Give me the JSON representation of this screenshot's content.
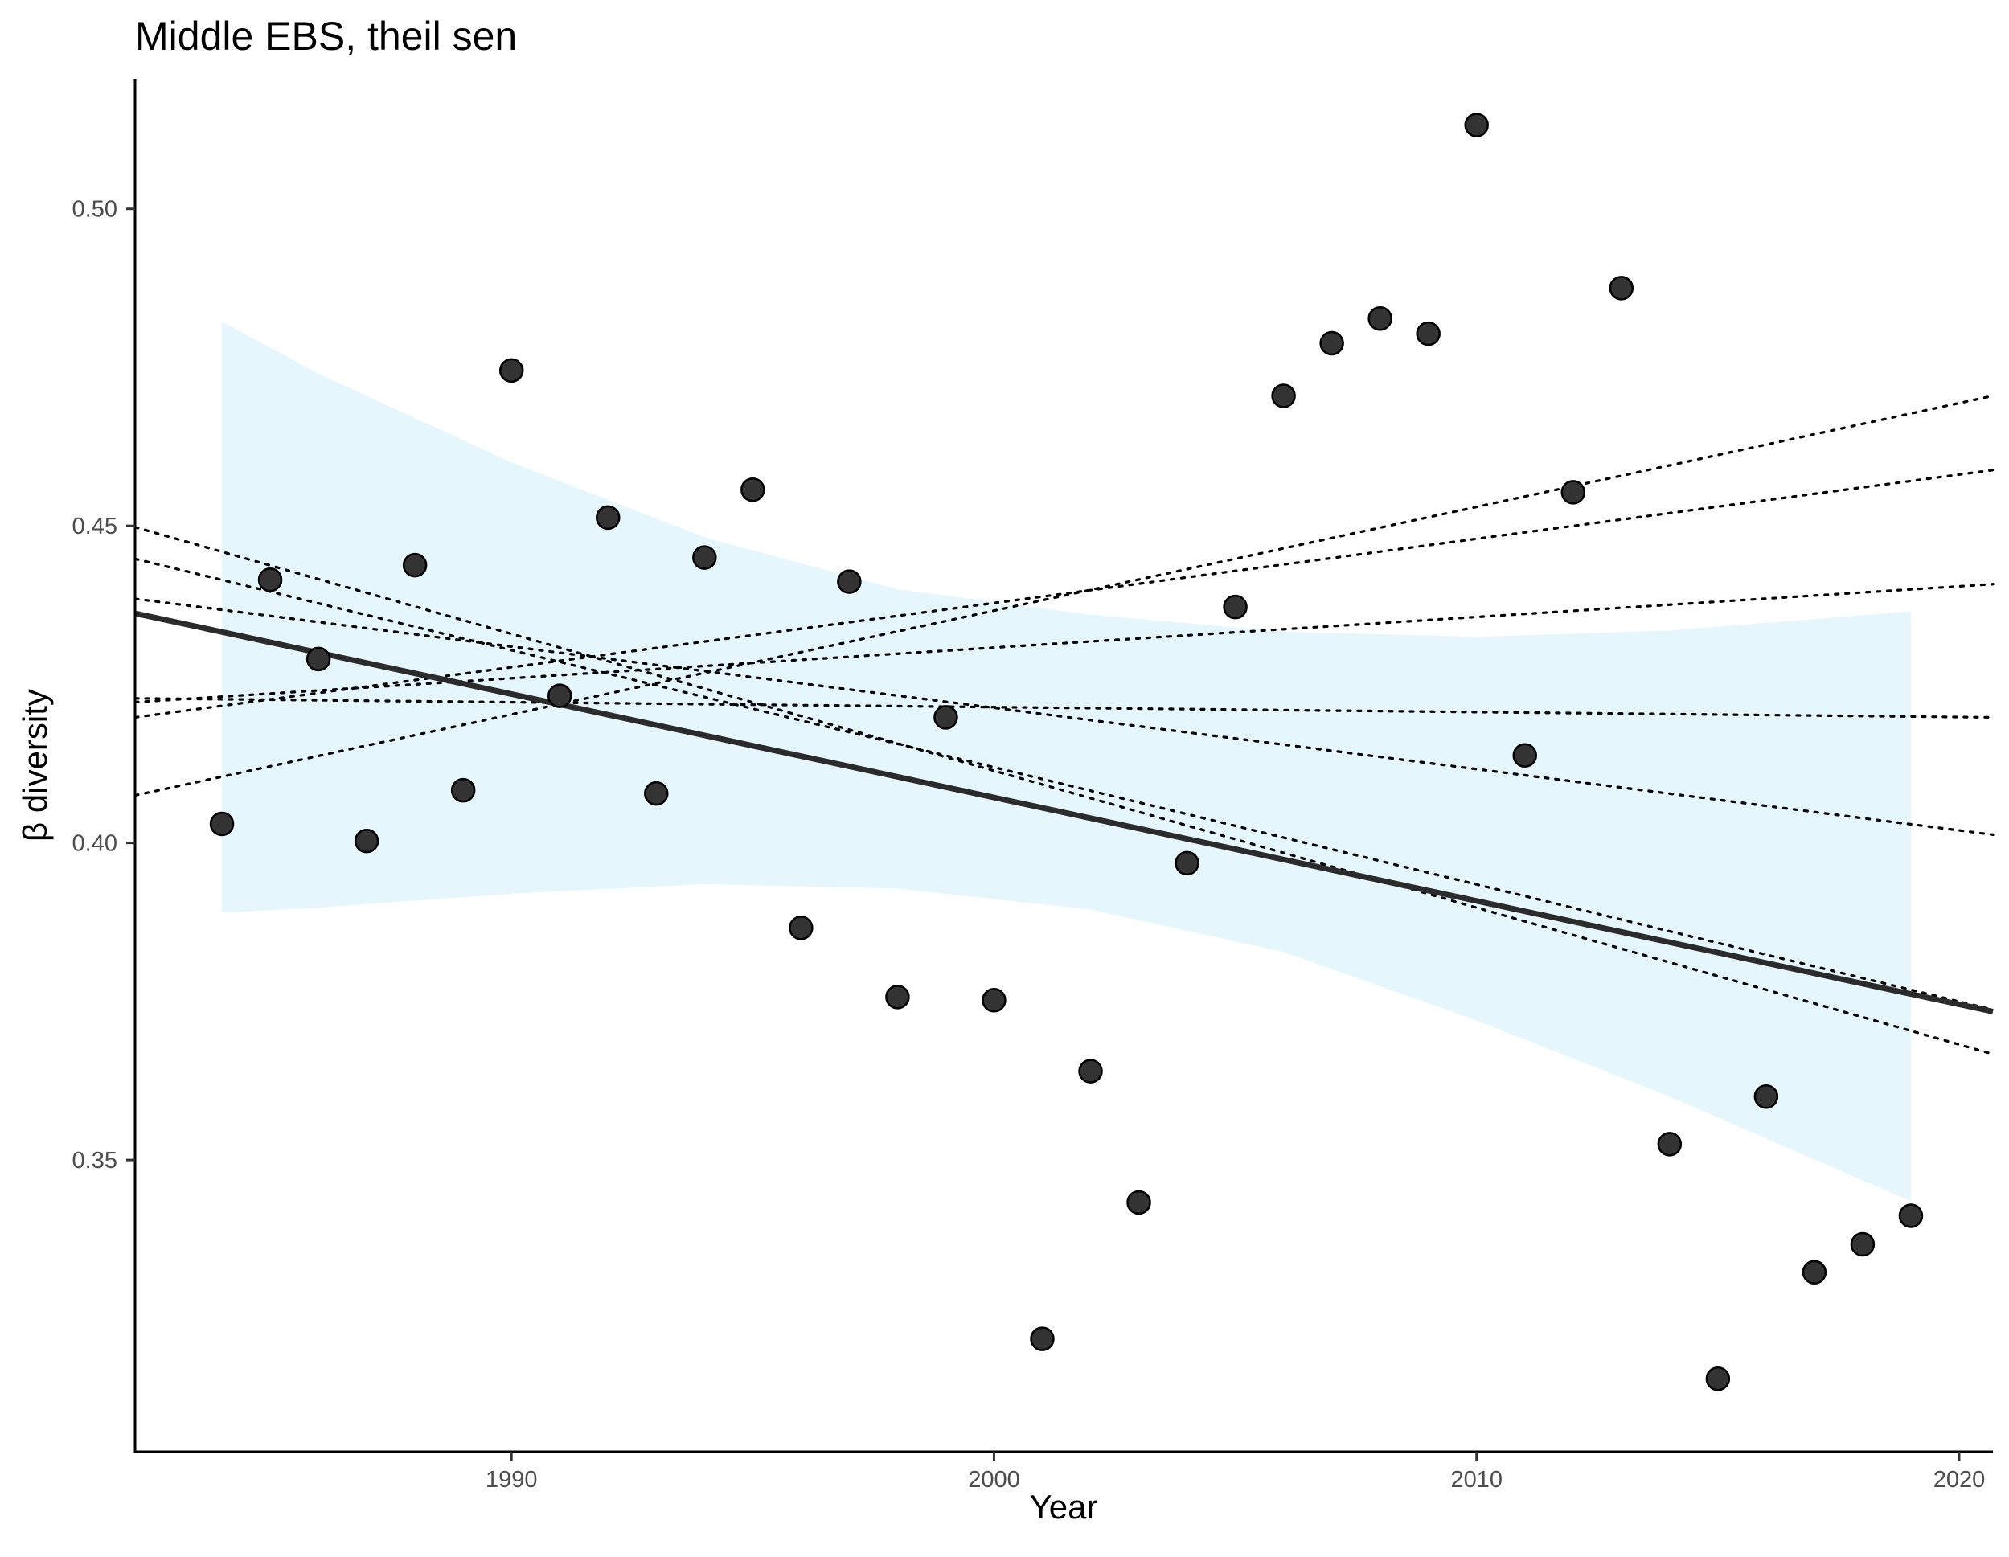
{
  "chart_data": {
    "type": "scatter",
    "title": "Middle EBS, theil sen",
    "xlabel": "Year",
    "ylabel": "β diversity",
    "xlim": [
      1982.2,
      2020.7
    ],
    "ylim": [
      0.304,
      0.5205
    ],
    "x_ticks": [
      1990,
      2000,
      2010,
      2020
    ],
    "x_tick_labels": [
      "1990",
      "2000",
      "2010",
      "2020"
    ],
    "y_ticks": [
      0.35,
      0.4,
      0.45,
      0.5
    ],
    "y_tick_labels": [
      "0.35",
      "0.40",
      "0.45",
      "0.50"
    ],
    "grid": false,
    "legend": "none",
    "colors": {
      "point": "#333333",
      "trend": "#2b2b2b",
      "band": "#e5f7fd",
      "ref_lines": "#000000"
    },
    "points": [
      {
        "x": 1984,
        "y": 0.403
      },
      {
        "x": 1985,
        "y": 0.4415
      },
      {
        "x": 1986,
        "y": 0.429
      },
      {
        "x": 1987,
        "y": 0.4003
      },
      {
        "x": 1988,
        "y": 0.4438
      },
      {
        "x": 1989,
        "y": 0.4083
      },
      {
        "x": 1990,
        "y": 0.4745
      },
      {
        "x": 1991,
        "y": 0.4232
      },
      {
        "x": 1992,
        "y": 0.4513
      },
      {
        "x": 1993,
        "y": 0.4078
      },
      {
        "x": 1994,
        "y": 0.445
      },
      {
        "x": 1995,
        "y": 0.4557
      },
      {
        "x": 1996,
        "y": 0.3866
      },
      {
        "x": 1997,
        "y": 0.4412
      },
      {
        "x": 1998,
        "y": 0.3757
      },
      {
        "x": 1999,
        "y": 0.4198
      },
      {
        "x": 2000,
        "y": 0.3752
      },
      {
        "x": 2001,
        "y": 0.3218
      },
      {
        "x": 2002,
        "y": 0.364
      },
      {
        "x": 2003,
        "y": 0.3433
      },
      {
        "x": 2004,
        "y": 0.3968
      },
      {
        "x": 2005,
        "y": 0.4372
      },
      {
        "x": 2006,
        "y": 0.4705
      },
      {
        "x": 2007,
        "y": 0.4788
      },
      {
        "x": 2008,
        "y": 0.4827
      },
      {
        "x": 2009,
        "y": 0.4803
      },
      {
        "x": 2010,
        "y": 0.5132
      },
      {
        "x": 2011,
        "y": 0.4138
      },
      {
        "x": 2012,
        "y": 0.4553
      },
      {
        "x": 2013,
        "y": 0.4875
      },
      {
        "x": 2014,
        "y": 0.3525
      },
      {
        "x": 2015,
        "y": 0.3155
      },
      {
        "x": 2016,
        "y": 0.36
      },
      {
        "x": 2017,
        "y": 0.3323
      },
      {
        "x": 2018,
        "y": 0.3367
      },
      {
        "x": 2019,
        "y": 0.3412
      }
    ],
    "trend_line": {
      "x": [
        1982.2,
        2020.7
      ],
      "y": [
        0.4362,
        0.3734
      ]
    },
    "confidence_band": {
      "x": [
        1984,
        1986,
        1990,
        1994,
        1998,
        2002,
        2006,
        2010,
        2014,
        2019
      ],
      "upper": [
        0.4822,
        0.474,
        0.46,
        0.4482,
        0.44,
        0.436,
        0.4333,
        0.4325,
        0.4335,
        0.4365
      ],
      "lower": [
        0.389,
        0.3898,
        0.392,
        0.3935,
        0.3928,
        0.3895,
        0.3828,
        0.372,
        0.36,
        0.3435
      ]
    },
    "reference_lines": [
      {
        "x": [
          1982.2,
          2020.7
        ],
        "y": [
          0.4075,
          0.4705
        ]
      },
      {
        "x": [
          1982.2,
          2020.7
        ],
        "y": [
          0.4198,
          0.4588
        ]
      },
      {
        "x": [
          1982.2,
          2020.7
        ],
        "y": [
          0.4222,
          0.4408
        ]
      },
      {
        "x": [
          1982.2,
          2020.7
        ],
        "y": [
          0.4228,
          0.4198
        ]
      },
      {
        "x": [
          1982.2,
          2020.7
        ],
        "y": [
          0.4385,
          0.4013
        ]
      },
      {
        "x": [
          1982.2,
          2020.7
        ],
        "y": [
          0.4448,
          0.3737
        ]
      },
      {
        "x": [
          1982.2,
          2020.7
        ],
        "y": [
          0.4498,
          0.3667
        ]
      }
    ]
  }
}
